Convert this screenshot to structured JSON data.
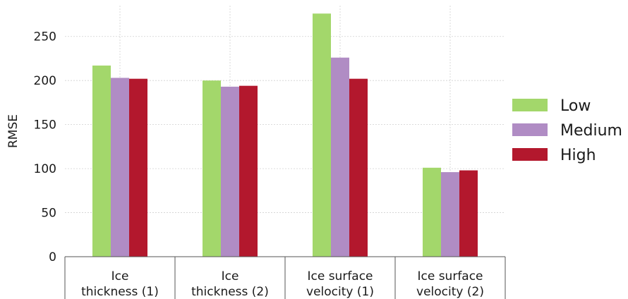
{
  "chart_data": {
    "type": "bar",
    "title": "",
    "xlabel": "",
    "ylabel": "RMSE",
    "ylim": [
      0,
      285
    ],
    "yticks": [
      0,
      50,
      100,
      150,
      200,
      250
    ],
    "grid": true,
    "legend_position": "right",
    "categories": [
      [
        "Ice",
        "thickness (1)"
      ],
      [
        "Ice",
        "thickness (2)"
      ],
      [
        "Ice surface",
        "velocity (1)"
      ],
      [
        "Ice surface",
        "velocity (2)"
      ]
    ],
    "series": [
      {
        "name": "Low",
        "color": "#a3d76b",
        "values": [
          217,
          200,
          276,
          101
        ]
      },
      {
        "name": "Medium",
        "color": "#b08cc4",
        "values": [
          203,
          193,
          226,
          96
        ]
      },
      {
        "name": "High",
        "color": "#b3182d",
        "values": [
          202,
          194,
          202,
          98
        ]
      }
    ]
  }
}
